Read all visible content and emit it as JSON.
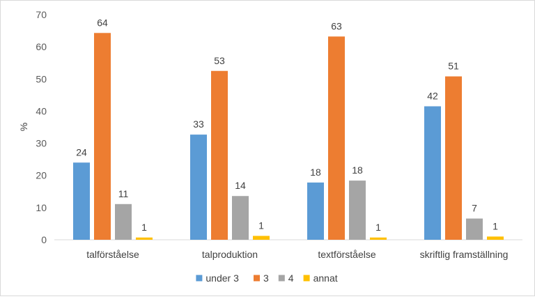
{
  "chart_data": {
    "type": "bar",
    "title": "",
    "xlabel": "",
    "ylabel": "%",
    "ylim": [
      0,
      70
    ],
    "yticks": [
      0,
      10,
      20,
      30,
      40,
      50,
      60,
      70
    ],
    "grid": false,
    "legend_position": "bottom",
    "categories": [
      "talförståelse",
      "talproduktion",
      "textförståelse",
      "skriftlig framställning"
    ],
    "series": [
      {
        "name": "under 3",
        "color": "#5b9bd5",
        "values": [
          24,
          33,
          18,
          42
        ],
        "exact_heights": [
          24,
          32.7,
          17.8,
          41.5
        ]
      },
      {
        "name": "3",
        "color": "#ed7d31",
        "values": [
          64,
          53,
          63,
          51
        ],
        "exact_heights": [
          64.3,
          52.5,
          63.2,
          50.8
        ]
      },
      {
        "name": "4",
        "color": "#a5a5a5",
        "values": [
          11,
          14,
          18,
          7
        ],
        "exact_heights": [
          11.1,
          13.6,
          18.4,
          6.6
        ]
      },
      {
        "name": "annat",
        "color": "#ffc000",
        "values": [
          1,
          1,
          1,
          1
        ],
        "exact_heights": [
          0.7,
          1.2,
          0.7,
          1.0
        ]
      }
    ]
  }
}
